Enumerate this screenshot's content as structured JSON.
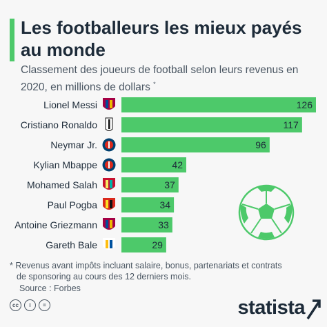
{
  "title": "Les footballeurs les mieux payés au monde",
  "subtitle": "Classement des joueurs de football selon leurs revenus en 2020, en millions de dollars",
  "subtitle_mark": "*",
  "footnote_line1": "* Revenus avant impôts incluant salaire, bonus, partenariats et contrats",
  "footnote_line2": "de sponsoring au cours des 12 derniers mois.",
  "source": "Source : Forbes",
  "brand": "statista",
  "colors": {
    "bar": "#4dc96a",
    "text": "#1d2b39",
    "background": "#f7f7f7"
  },
  "clubs": [
    "fc-barcelona-crest-icon",
    "juventus-crest-icon",
    "psg-crest-icon",
    "psg-crest-icon",
    "liverpool-crest-icon",
    "manchester-united-crest-icon",
    "fc-barcelona-crest-icon",
    "real-madrid-crest-icon"
  ],
  "chart_data": {
    "type": "bar",
    "orientation": "horizontal",
    "categories": [
      "Lionel Messi",
      "Cristiano Ronaldo",
      "Neymar Jr.",
      "Kylian Mbappe",
      "Mohamed Salah",
      "Paul Pogba",
      "Antoine Griezmann",
      "Gareth Bale"
    ],
    "values": [
      126,
      117,
      96,
      42,
      37,
      34,
      33,
      29
    ],
    "xlim": [
      0,
      126
    ],
    "grid": false,
    "legend": "none"
  }
}
